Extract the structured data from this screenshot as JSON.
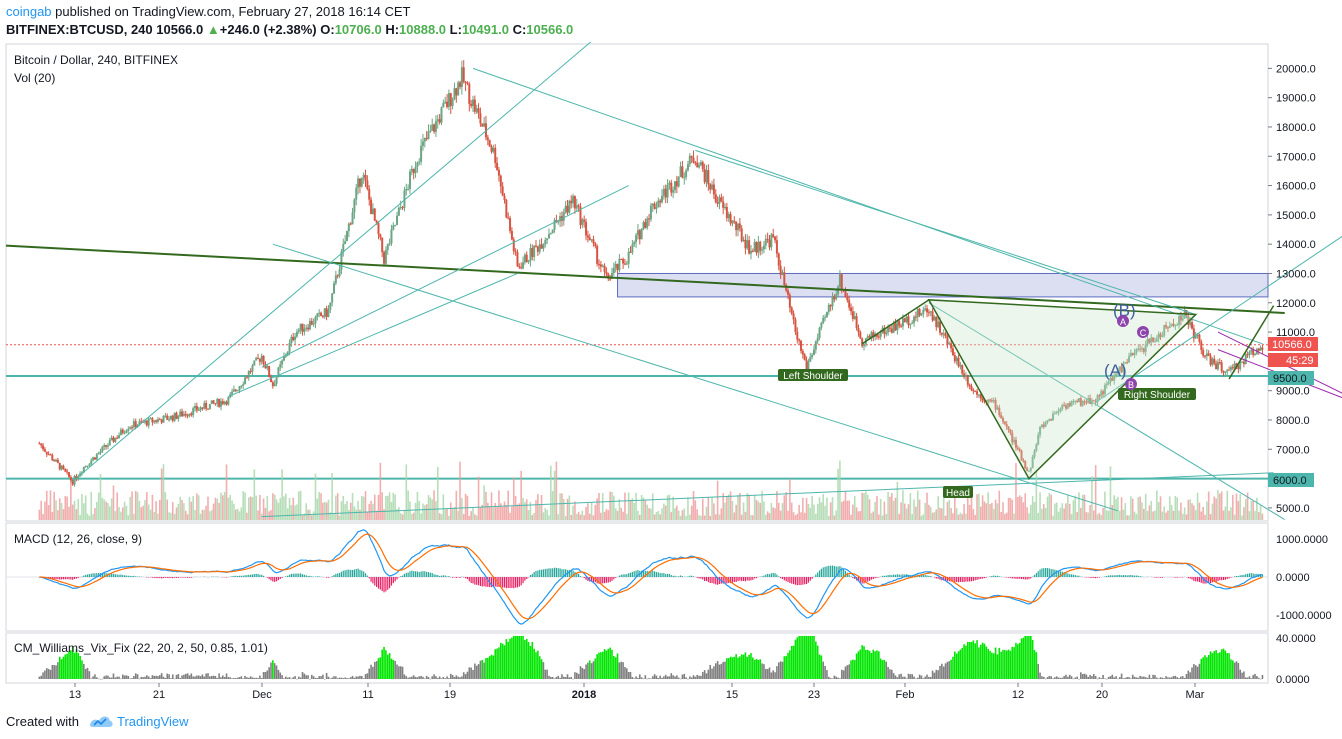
{
  "header": {
    "author": "coingab",
    "published_text": "published on TradingView.com, February 27, 2018 16:14 CET",
    "symbol_interval": "BITFINEX:BTCUSD, 240",
    "last": "10566.0",
    "change": "+246.0 (+2.38%)",
    "o_label": "O:",
    "o_value": "10706.0",
    "h_label": "H:",
    "h_value": "10888.0",
    "l_label": "L:",
    "l_value": "10491.0",
    "c_label": "C:",
    "c_value": "10566.0"
  },
  "legend": {
    "main_title": "Bitcoin / Dollar, 240, BITFINEX",
    "vol": "Vol (20)",
    "macd": "MACD (12, 26, close, 9)",
    "vix": "CM_Williams_Vix_Fix (22, 20, 2, 50, 0.85, 1.01)"
  },
  "annotations": {
    "left_shoulder": "Left Shoulder",
    "head": "Head",
    "right_shoulder": "Right Shoulder",
    "wave_b": "(B)",
    "wave_a": "(A)",
    "a": "A",
    "b": "B",
    "c": "C"
  },
  "price_tags": {
    "last": "10566.0",
    "countdown": "45:29",
    "level_9500": "9500.0",
    "level_6000": "6000.0"
  },
  "footer": {
    "created_with": "Created with",
    "brand": "TradingView"
  },
  "colors": {
    "up": "#6ba583",
    "down": "#d75442",
    "trendline_teal": "#4db6ac",
    "neckline_green": "#33691e",
    "zone_fill": "#c5cae9",
    "macd_line": "#2196f3",
    "signal_line": "#ff6d00",
    "vix_green": "#00e600",
    "vix_gray": "#808080",
    "purple": "#9c27b0"
  },
  "chart_data": {
    "type": "candlestick",
    "symbol": "BITFINEX:BTCUSD",
    "interval": "240",
    "price_axis": {
      "ticks": [
        "20000.0",
        "19000.0",
        "18000.0",
        "17000.0",
        "16000.0",
        "15000.0",
        "14000.0",
        "13000.0",
        "12000.0",
        "11000.0",
        "10000.0",
        "9000.0",
        "8000.0",
        "7000.0",
        "6000.0",
        "5000.0"
      ],
      "range": [
        4600,
        20900
      ]
    },
    "time_axis": {
      "labels": [
        "13",
        "21",
        "Dec",
        "11",
        "19",
        "2018",
        "15",
        "23",
        "Feb",
        "12",
        "20",
        "Mar"
      ]
    },
    "price_path": [
      {
        "date": "2017-11-09",
        "value": 7200
      },
      {
        "date": "2017-11-12",
        "value": 5900
      },
      {
        "date": "2017-11-13",
        "value": 6400
      },
      {
        "date": "2017-11-17",
        "value": 7800
      },
      {
        "date": "2017-11-21",
        "value": 8100
      },
      {
        "date": "2017-11-26",
        "value": 8700
      },
      {
        "date": "2017-11-29",
        "value": 10200
      },
      {
        "date": "2017-11-30",
        "value": 9200
      },
      {
        "date": "2017-12-02",
        "value": 11000
      },
      {
        "date": "2017-12-05",
        "value": 11700
      },
      {
        "date": "2017-12-08",
        "value": 16500
      },
      {
        "date": "2017-12-10",
        "value": 13500
      },
      {
        "date": "2017-12-13",
        "value": 17000
      },
      {
        "date": "2017-12-17",
        "value": 19700
      },
      {
        "date": "2017-12-20",
        "value": 17000
      },
      {
        "date": "2017-12-22",
        "value": 13200
      },
      {
        "date": "2017-12-24",
        "value": 14000
      },
      {
        "date": "2017-12-27",
        "value": 15500
      },
      {
        "date": "2017-12-30",
        "value": 12800
      },
      {
        "date": "2018-01-01",
        "value": 13600
      },
      {
        "date": "2018-01-03",
        "value": 15200
      },
      {
        "date": "2018-01-07",
        "value": 17000
      },
      {
        "date": "2018-01-09",
        "value": 15500
      },
      {
        "date": "2018-01-12",
        "value": 13800
      },
      {
        "date": "2018-01-14",
        "value": 14200
      },
      {
        "date": "2018-01-16",
        "value": 11000
      },
      {
        "date": "2018-01-17",
        "value": 9800
      },
      {
        "date": "2018-01-20",
        "value": 12800
      },
      {
        "date": "2018-01-22",
        "value": 10700
      },
      {
        "date": "2018-01-25",
        "value": 11200
      },
      {
        "date": "2018-01-28",
        "value": 11800
      },
      {
        "date": "2018-02-01",
        "value": 9000
      },
      {
        "date": "2018-02-03",
        "value": 8500
      },
      {
        "date": "2018-02-06",
        "value": 6200
      },
      {
        "date": "2018-02-07",
        "value": 7700
      },
      {
        "date": "2018-02-09",
        "value": 8500
      },
      {
        "date": "2018-02-12",
        "value": 8700
      },
      {
        "date": "2018-02-15",
        "value": 10100
      },
      {
        "date": "2018-02-20",
        "value": 11600
      },
      {
        "date": "2018-02-22",
        "value": 10100
      },
      {
        "date": "2018-02-24",
        "value": 9600
      },
      {
        "date": "2018-02-26",
        "value": 10300
      },
      {
        "date": "2018-02-27",
        "value": 10566
      }
    ],
    "horizontal_levels": [
      9500,
      6000
    ],
    "resistance_zone": [
      12200,
      13000
    ],
    "macd_axis": {
      "ticks": [
        "1000.0000",
        "0.0000",
        "-1000.0000"
      ]
    },
    "vix_axis": {
      "ticks": [
        "40.0000",
        "0.0000"
      ]
    }
  }
}
